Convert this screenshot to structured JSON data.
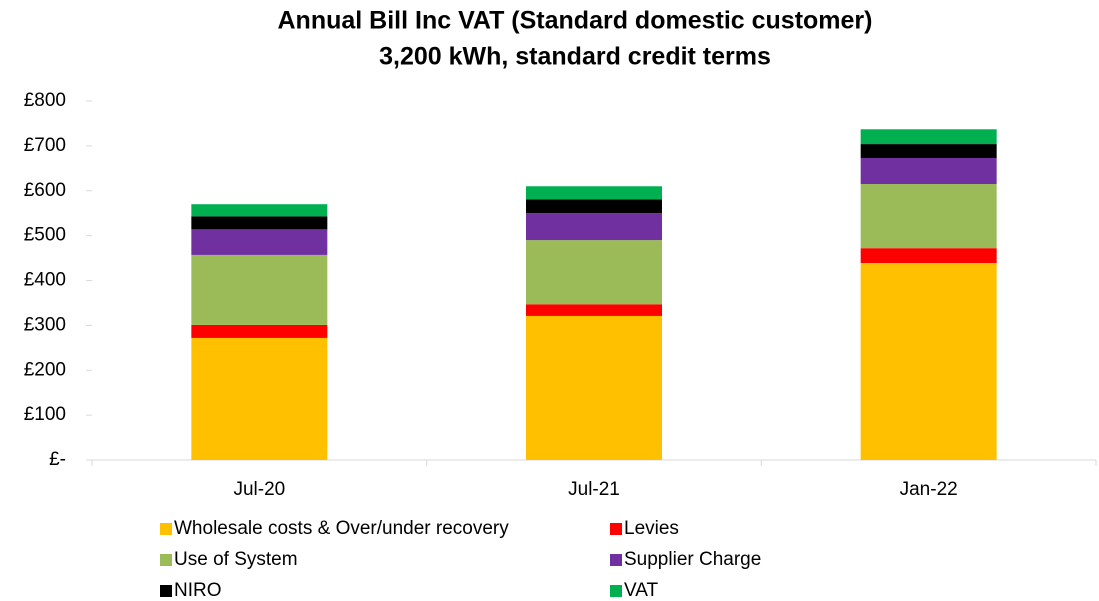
{
  "chart_data": {
    "type": "stacked_bar",
    "title": "Annual Bill Inc VAT (Standard domestic customer)",
    "subtitle": "3,200 kWh, standard credit terms",
    "categories": [
      "Jul-20",
      "Jul-21",
      "Jan-22"
    ],
    "series": [
      {
        "name": "Wholesale costs & Over/under recovery",
        "color": "#ffc000",
        "values": [
          272,
          321,
          439
        ]
      },
      {
        "name": "Levies",
        "color": "#ff0000",
        "values": [
          29,
          26,
          33
        ]
      },
      {
        "name": "Use of System",
        "color": "#9bbb59",
        "values": [
          156,
          143,
          143
        ]
      },
      {
        "name": "Supplier Charge",
        "color": "#7030a0",
        "values": [
          57,
          60,
          58
        ]
      },
      {
        "name": "NIRO",
        "color": "#000000",
        "values": [
          29,
          31,
          31
        ]
      },
      {
        "name": "VAT",
        "color": "#00b050",
        "values": [
          27,
          29,
          33
        ]
      }
    ],
    "ylim": [
      0,
      800
    ],
    "yticks": [
      {
        "value": 0,
        "label": "£-"
      },
      {
        "value": 100,
        "label": "£100"
      },
      {
        "value": 200,
        "label": "£200"
      },
      {
        "value": 300,
        "label": "£300"
      },
      {
        "value": 400,
        "label": "£400"
      },
      {
        "value": 500,
        "label": "£500"
      },
      {
        "value": 600,
        "label": "£600"
      },
      {
        "value": 700,
        "label": "£700"
      },
      {
        "value": 800,
        "label": "£800"
      }
    ],
    "grid": false,
    "legend": "bottom"
  }
}
